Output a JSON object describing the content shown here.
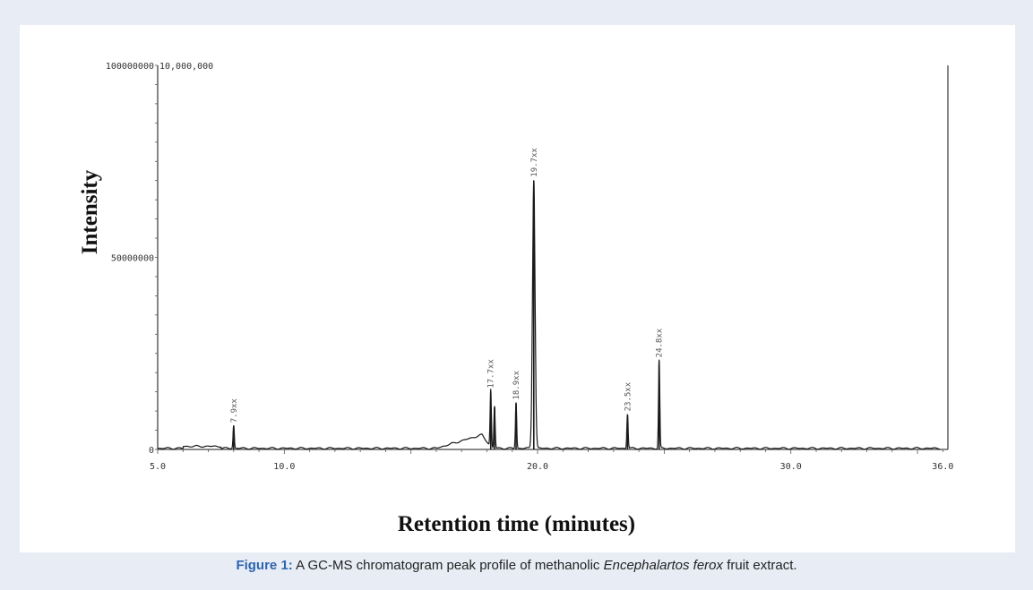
{
  "figure": {
    "caption_label": "Figure 1:",
    "caption_pre": " A GC-MS chromatogram peak profile of methanolic ",
    "caption_species": "Encephalartos ferox",
    "caption_post": " fruit extract."
  },
  "chart_data": {
    "type": "line",
    "xlabel": "Retention time (minutes)",
    "ylabel": "Intensity",
    "xlim": [
      5.0,
      36.0
    ],
    "ylim": [
      0,
      100000000
    ],
    "x_ticks": [
      {
        "value": 5.0,
        "label": "5.0"
      },
      {
        "value": 10.0,
        "label": "10.0"
      },
      {
        "value": 20.0,
        "label": "20.0"
      },
      {
        "value": 30.0,
        "label": "30.0"
      },
      {
        "value": 36.0,
        "label": "36.0"
      }
    ],
    "y_ticks": [
      {
        "value": 0,
        "label": "0"
      },
      {
        "value": 50000000,
        "label": "50000000"
      },
      {
        "value": 100000000,
        "label": "100000000"
      }
    ],
    "y_top_scale_label": "10,000,000",
    "hump": {
      "start": 16.0,
      "peak": 17.8,
      "end": 18.2,
      "height": 3500000
    },
    "peaks": [
      {
        "rt": 8.0,
        "intensity": 6000000,
        "label": "7.9xx"
      },
      {
        "rt": 18.15,
        "intensity": 15000000,
        "label": "17.7xx"
      },
      {
        "rt": 18.3,
        "intensity": 11000000,
        "label": ""
      },
      {
        "rt": 19.15,
        "intensity": 12000000,
        "label": "18.9xx"
      },
      {
        "rt": 19.85,
        "intensity": 70000000,
        "label": "19.7xx"
      },
      {
        "rt": 23.55,
        "intensity": 9000000,
        "label": "23.5xx"
      },
      {
        "rt": 24.8,
        "intensity": 23000000,
        "label": "24.8xx"
      }
    ],
    "grid": false
  }
}
